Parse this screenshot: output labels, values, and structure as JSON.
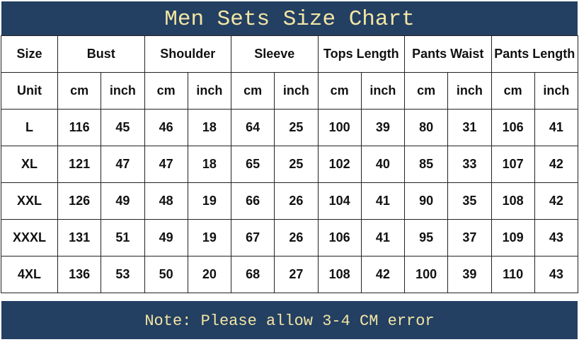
{
  "title": "Men Sets Size Chart",
  "note": "Note: Please allow 3-4 CM error",
  "colors": {
    "band_background": "#233f62",
    "band_text": "#f3e6a4"
  },
  "table": {
    "size_header": "Size",
    "unit_header": "Unit",
    "groups": [
      "Bust",
      "Shoulder",
      "Sleeve",
      "Tops Length",
      "Pants Waist",
      "Pants Length"
    ],
    "units": [
      "cm",
      "inch"
    ],
    "rows": [
      {
        "size": "L",
        "values": [
          "116",
          "45",
          "46",
          "18",
          "64",
          "25",
          "100",
          "39",
          "80",
          "31",
          "106",
          "41"
        ]
      },
      {
        "size": "XL",
        "values": [
          "121",
          "47",
          "47",
          "18",
          "65",
          "25",
          "102",
          "40",
          "85",
          "33",
          "107",
          "42"
        ]
      },
      {
        "size": "XXL",
        "values": [
          "126",
          "49",
          "48",
          "19",
          "66",
          "26",
          "104",
          "41",
          "90",
          "35",
          "108",
          "42"
        ]
      },
      {
        "size": "XXXL",
        "values": [
          "131",
          "51",
          "49",
          "19",
          "67",
          "26",
          "106",
          "41",
          "95",
          "37",
          "109",
          "43"
        ]
      },
      {
        "size": "4XL",
        "values": [
          "136",
          "53",
          "50",
          "20",
          "68",
          "27",
          "108",
          "42",
          "100",
          "39",
          "110",
          "43"
        ]
      }
    ]
  }
}
